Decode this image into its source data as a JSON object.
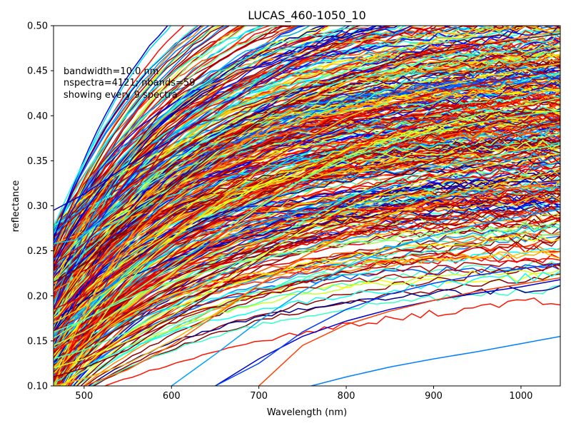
{
  "chart_data": {
    "type": "line",
    "title": "LUCAS_460-1050_10",
    "xlabel": "Wavelength (nm)",
    "ylabel": "reflectance",
    "xlim": [
      465,
      1045
    ],
    "ylim": [
      0.1,
      0.5
    ],
    "x_ticks": [
      500,
      600,
      700,
      800,
      900,
      1000
    ],
    "x_tick_labels": [
      "500",
      "600",
      "700",
      "800",
      "900",
      "1000"
    ],
    "y_ticks": [
      0.1,
      0.15,
      0.2,
      0.25,
      0.3,
      0.35,
      0.4,
      0.45,
      0.5
    ],
    "y_tick_labels": [
      "0.10",
      "0.15",
      "0.20",
      "0.25",
      "0.30",
      "0.35",
      "0.40",
      "0.45",
      "0.50"
    ],
    "grid": false,
    "annotation_lines": [
      "bandwidth=10.0 nm",
      "nspectra=4121; nbands=59",
      "showing every 9 spectra"
    ],
    "colormap": "jet",
    "series_count": 458,
    "series": [
      {
        "color": "#0000cc",
        "values": [
          [
            465,
            0.295
          ],
          [
            500,
            0.313
          ],
          [
            550,
            0.345
          ],
          [
            600,
            0.373
          ],
          [
            650,
            0.405
          ],
          [
            700,
            0.437
          ],
          [
            750,
            0.467
          ],
          [
            800,
            0.49
          ],
          [
            850,
            0.5
          ]
        ]
      },
      {
        "color": "#1ecbe1",
        "values": [
          [
            465,
            0.258
          ],
          [
            490,
            0.262
          ],
          [
            520,
            0.283
          ],
          [
            560,
            0.32
          ],
          [
            600,
            0.355
          ],
          [
            650,
            0.397
          ],
          [
            700,
            0.44
          ],
          [
            750,
            0.476
          ],
          [
            800,
            0.5
          ]
        ]
      },
      {
        "color": "#0080ff",
        "values": [
          [
            760,
            0.1
          ],
          [
            800,
            0.11
          ],
          [
            850,
            0.121
          ],
          [
            900,
            0.13
          ],
          [
            950,
            0.138
          ],
          [
            1000,
            0.147
          ],
          [
            1045,
            0.155
          ]
        ]
      },
      {
        "color": "#0000cc",
        "values": [
          [
            650,
            0.1
          ],
          [
            700,
            0.13
          ],
          [
            750,
            0.155
          ],
          [
            800,
            0.172
          ],
          [
            850,
            0.185
          ],
          [
            900,
            0.195
          ],
          [
            950,
            0.203
          ],
          [
            1000,
            0.21
          ],
          [
            1045,
            0.218
          ]
        ]
      },
      {
        "color": "#cc0000",
        "values": [
          [
            465,
            0.235
          ],
          [
            500,
            0.258
          ],
          [
            550,
            0.305
          ],
          [
            600,
            0.375
          ],
          [
            650,
            0.405
          ],
          [
            700,
            0.435
          ],
          [
            750,
            0.462
          ],
          [
            800,
            0.483
          ],
          [
            850,
            0.5
          ]
        ]
      },
      {
        "color": "#800000",
        "values": [
          [
            465,
            0.11
          ],
          [
            500,
            0.12
          ],
          [
            550,
            0.14
          ],
          [
            600,
            0.172
          ],
          [
            650,
            0.205
          ],
          [
            700,
            0.24
          ],
          [
            750,
            0.275
          ],
          [
            800,
            0.305
          ],
          [
            850,
            0.33
          ],
          [
            900,
            0.35
          ],
          [
            950,
            0.368
          ],
          [
            1000,
            0.383
          ],
          [
            1045,
            0.395
          ]
        ]
      },
      {
        "color": "#ff4000",
        "values": [
          [
            700,
            0.1
          ],
          [
            750,
            0.145
          ],
          [
            800,
            0.168
          ],
          [
            850,
            0.183
          ],
          [
            900,
            0.195
          ],
          [
            950,
            0.205
          ],
          [
            1000,
            0.213
          ],
          [
            1045,
            0.22
          ]
        ]
      },
      {
        "color": "#a0ff60",
        "values": [
          [
            465,
            0.145
          ],
          [
            500,
            0.16
          ],
          [
            550,
            0.19
          ],
          [
            600,
            0.225
          ],
          [
            650,
            0.262
          ],
          [
            700,
            0.298
          ],
          [
            750,
            0.33
          ],
          [
            800,
            0.355
          ],
          [
            850,
            0.374
          ],
          [
            900,
            0.389
          ],
          [
            950,
            0.401
          ],
          [
            1000,
            0.411
          ],
          [
            1045,
            0.42
          ]
        ]
      },
      {
        "color": "#ffd000",
        "values": [
          [
            465,
            0.17
          ],
          [
            500,
            0.188
          ],
          [
            550,
            0.222
          ],
          [
            600,
            0.262
          ],
          [
            650,
            0.302
          ],
          [
            700,
            0.34
          ],
          [
            750,
            0.372
          ],
          [
            800,
            0.398
          ],
          [
            850,
            0.417
          ],
          [
            900,
            0.431
          ],
          [
            950,
            0.442
          ],
          [
            1000,
            0.451
          ],
          [
            1045,
            0.458
          ]
        ]
      },
      {
        "color": "#40ffc0",
        "values": [
          [
            465,
            0.13
          ],
          [
            500,
            0.14
          ],
          [
            550,
            0.16
          ],
          [
            600,
            0.188
          ],
          [
            650,
            0.22
          ],
          [
            700,
            0.253
          ],
          [
            750,
            0.283
          ],
          [
            800,
            0.308
          ],
          [
            850,
            0.327
          ],
          [
            900,
            0.341
          ],
          [
            950,
            0.352
          ],
          [
            1000,
            0.361
          ],
          [
            1045,
            0.368
          ]
        ]
      },
      {
        "color": "#ff8000",
        "values": [
          [
            465,
            0.205
          ],
          [
            500,
            0.225
          ],
          [
            550,
            0.262
          ],
          [
            600,
            0.305
          ],
          [
            650,
            0.345
          ],
          [
            700,
            0.382
          ],
          [
            750,
            0.413
          ],
          [
            800,
            0.437
          ],
          [
            850,
            0.455
          ],
          [
            900,
            0.468
          ],
          [
            950,
            0.478
          ],
          [
            1000,
            0.487
          ],
          [
            1045,
            0.494
          ]
        ]
      },
      {
        "color": "#00a0ff",
        "values": [
          [
            600,
            0.1
          ],
          [
            650,
            0.135
          ],
          [
            700,
            0.172
          ],
          [
            750,
            0.205
          ],
          [
            800,
            0.232
          ],
          [
            850,
            0.252
          ],
          [
            900,
            0.267
          ],
          [
            950,
            0.279
          ],
          [
            1000,
            0.288
          ],
          [
            1045,
            0.296
          ]
        ]
      },
      {
        "color": "#ff2000",
        "values": [
          [
            465,
            0.14
          ],
          [
            500,
            0.155
          ],
          [
            550,
            0.185
          ],
          [
            600,
            0.222
          ],
          [
            650,
            0.262
          ],
          [
            700,
            0.3
          ],
          [
            750,
            0.333
          ],
          [
            800,
            0.36
          ],
          [
            850,
            0.38
          ],
          [
            900,
            0.395
          ],
          [
            950,
            0.407
          ],
          [
            1000,
            0.417
          ],
          [
            1045,
            0.425
          ]
        ]
      },
      {
        "color": "#e0ff20",
        "values": [
          [
            465,
            0.12
          ],
          [
            500,
            0.13
          ],
          [
            550,
            0.15
          ],
          [
            600,
            0.178
          ],
          [
            650,
            0.21
          ],
          [
            700,
            0.243
          ],
          [
            750,
            0.273
          ],
          [
            800,
            0.298
          ],
          [
            850,
            0.317
          ],
          [
            900,
            0.331
          ],
          [
            950,
            0.342
          ],
          [
            1000,
            0.351
          ],
          [
            1045,
            0.358
          ]
        ]
      },
      {
        "color": "#cc0000",
        "values": [
          [
            465,
            0.185
          ],
          [
            500,
            0.2
          ],
          [
            550,
            0.232
          ],
          [
            600,
            0.27
          ],
          [
            650,
            0.308
          ],
          [
            700,
            0.343
          ],
          [
            750,
            0.372
          ],
          [
            800,
            0.395
          ],
          [
            850,
            0.412
          ],
          [
            900,
            0.425
          ],
          [
            950,
            0.435
          ],
          [
            1000,
            0.443
          ],
          [
            1045,
            0.45
          ]
        ]
      },
      {
        "color": "#0040ff",
        "values": [
          [
            650,
            0.1
          ],
          [
            700,
            0.125
          ],
          [
            750,
            0.16
          ],
          [
            800,
            0.185
          ],
          [
            850,
            0.202
          ],
          [
            900,
            0.214
          ],
          [
            950,
            0.223
          ],
          [
            1000,
            0.23
          ],
          [
            1045,
            0.236
          ]
        ]
      },
      {
        "color": "#ffb000",
        "values": [
          [
            465,
            0.1
          ],
          [
            500,
            0.108
          ],
          [
            550,
            0.125
          ],
          [
            600,
            0.15
          ],
          [
            650,
            0.18
          ],
          [
            700,
            0.212
          ],
          [
            750,
            0.243
          ],
          [
            800,
            0.27
          ],
          [
            850,
            0.291
          ],
          [
            900,
            0.307
          ],
          [
            950,
            0.32
          ],
          [
            1000,
            0.33
          ],
          [
            1045,
            0.338
          ]
        ]
      },
      {
        "color": "#800000",
        "values": [
          [
            465,
            0.215
          ],
          [
            500,
            0.235
          ],
          [
            550,
            0.275
          ],
          [
            600,
            0.32
          ],
          [
            650,
            0.36
          ],
          [
            700,
            0.395
          ],
          [
            750,
            0.423
          ],
          [
            800,
            0.444
          ],
          [
            850,
            0.459
          ],
          [
            900,
            0.47
          ],
          [
            950,
            0.478
          ],
          [
            1000,
            0.485
          ],
          [
            1045,
            0.491
          ]
        ]
      },
      {
        "color": "#60ffa0",
        "values": [
          [
            465,
            0.16
          ],
          [
            500,
            0.173
          ],
          [
            550,
            0.2
          ],
          [
            600,
            0.233
          ],
          [
            650,
            0.267
          ],
          [
            700,
            0.3
          ],
          [
            750,
            0.329
          ],
          [
            800,
            0.352
          ],
          [
            850,
            0.369
          ],
          [
            900,
            0.382
          ],
          [
            950,
            0.392
          ],
          [
            1000,
            0.4
          ],
          [
            1045,
            0.406
          ]
        ]
      },
      {
        "color": "#ff6000",
        "values": [
          [
            500,
            0.1
          ],
          [
            550,
            0.118
          ],
          [
            600,
            0.145
          ],
          [
            650,
            0.178
          ],
          [
            700,
            0.212
          ],
          [
            750,
            0.243
          ],
          [
            800,
            0.268
          ],
          [
            850,
            0.287
          ],
          [
            900,
            0.301
          ],
          [
            950,
            0.312
          ],
          [
            1000,
            0.321
          ],
          [
            1045,
            0.328
          ]
        ]
      }
    ]
  }
}
